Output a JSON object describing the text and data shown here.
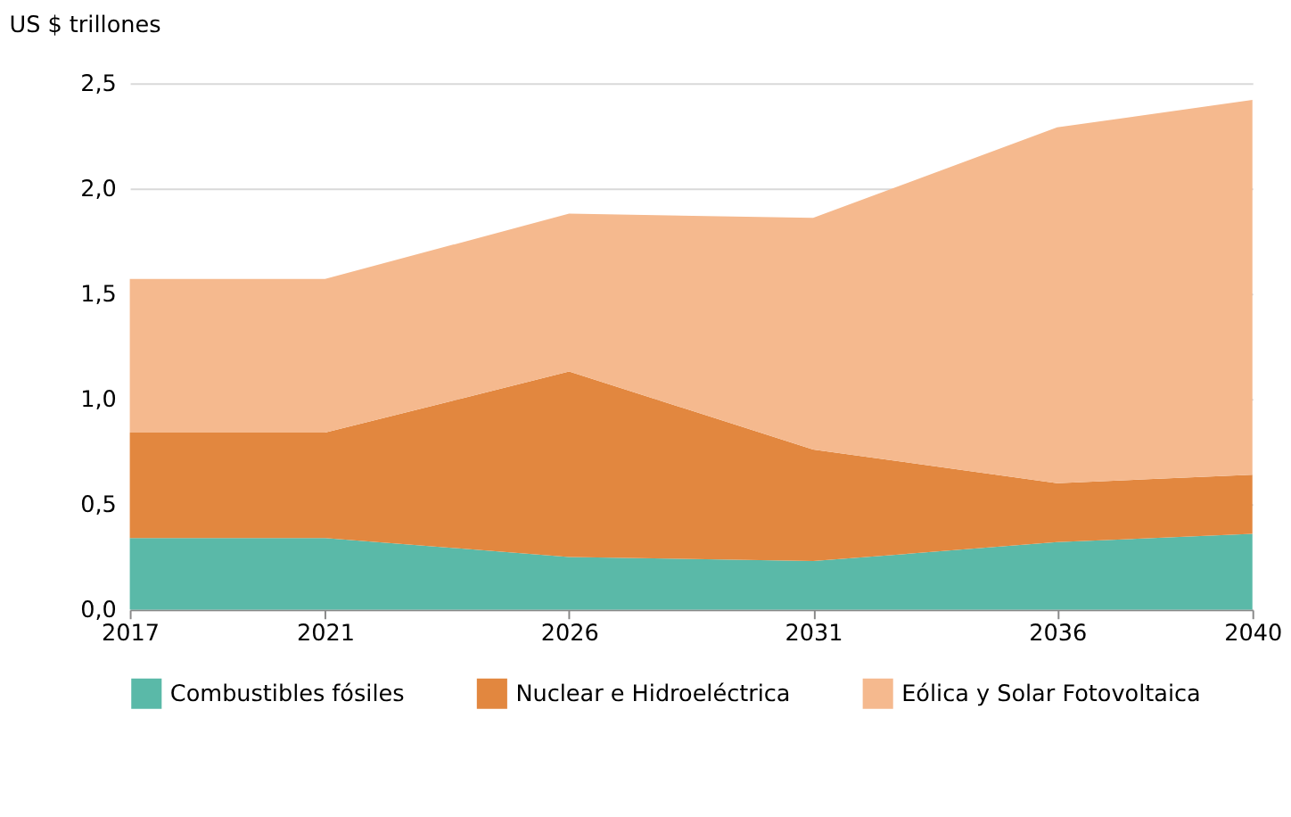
{
  "chart_data": {
    "type": "area",
    "stacked": true,
    "ylabel": "US $ trillones",
    "x": [
      2017,
      2021,
      2026,
      2031,
      2036,
      2040
    ],
    "series": [
      {
        "name": "Combustibles fósiles",
        "color": "#5ab9a8",
        "values": [
          0.34,
          0.34,
          0.25,
          0.23,
          0.32,
          0.36
        ]
      },
      {
        "name": "Nuclear e Hidroeléctrica",
        "color": "#e2873f",
        "values": [
          0.5,
          0.5,
          0.88,
          0.53,
          0.28,
          0.28
        ]
      },
      {
        "name": "Eólica y Solar Fotovoltaica",
        "color": "#f5b98e",
        "values": [
          0.73,
          0.73,
          0.75,
          1.1,
          1.69,
          1.78
        ]
      }
    ],
    "xlim": [
      2017,
      2040
    ],
    "xticks": [
      2017,
      2021,
      2026,
      2031,
      2036,
      2040
    ],
    "ylim": [
      0,
      2.5
    ],
    "yticks": [
      {
        "value": 0,
        "label": "0,0"
      },
      {
        "value": 0.5,
        "label": "0,5"
      },
      {
        "value": 1,
        "label": "1,0"
      },
      {
        "value": 1.5,
        "label": "1,5"
      },
      {
        "value": 2,
        "label": "2,0"
      },
      {
        "value": 2.5,
        "label": "2,5"
      }
    ],
    "grid": "y",
    "legend": "bottom"
  }
}
